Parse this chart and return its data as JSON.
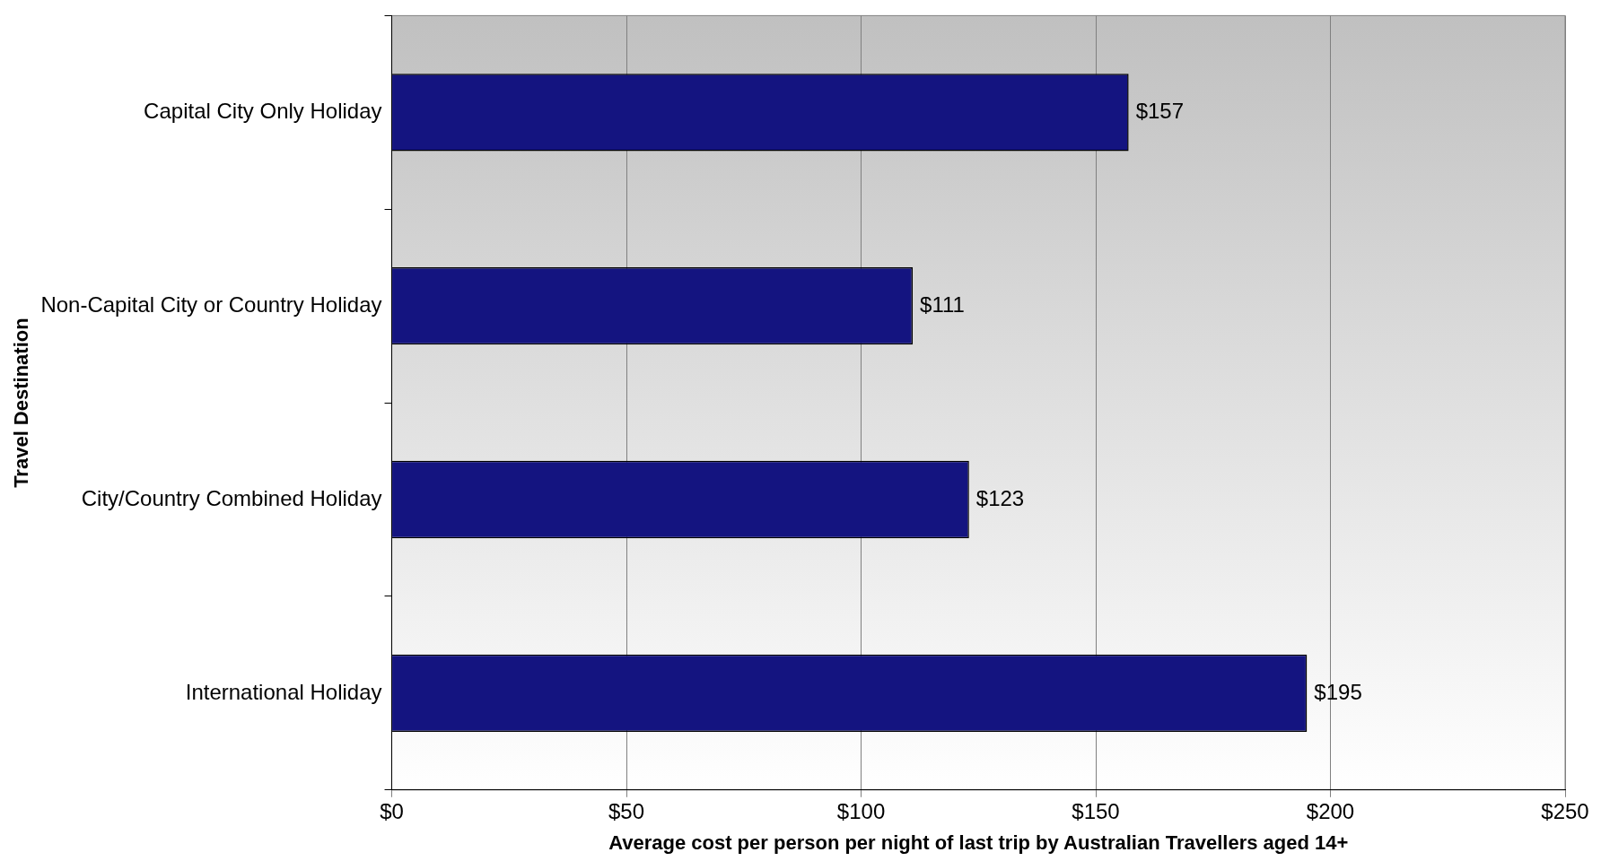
{
  "chart_data": {
    "type": "bar",
    "orientation": "horizontal",
    "xlabel": "Average cost per person per night of last trip by Australian Travellers aged 14+",
    "ylabel": "Travel Destination",
    "categories": [
      "Capital City Only Holiday",
      "Non-Capital City or Country Holiday",
      "City/Country Combined Holiday",
      "International Holiday"
    ],
    "values": [
      157,
      111,
      123,
      195
    ],
    "value_labels": [
      "$157",
      "$111",
      "$123",
      "$195"
    ],
    "color": "#141480",
    "xlim": [
      0,
      250
    ],
    "xticks": [
      {
        "value": 0,
        "label": "$0"
      },
      {
        "value": 50,
        "label": "$50"
      },
      {
        "value": 100,
        "label": "$100"
      },
      {
        "value": 150,
        "label": "$150"
      },
      {
        "value": 200,
        "label": "$200"
      },
      {
        "value": 250,
        "label": "$250"
      }
    ],
    "grid": "x",
    "legend": false
  }
}
